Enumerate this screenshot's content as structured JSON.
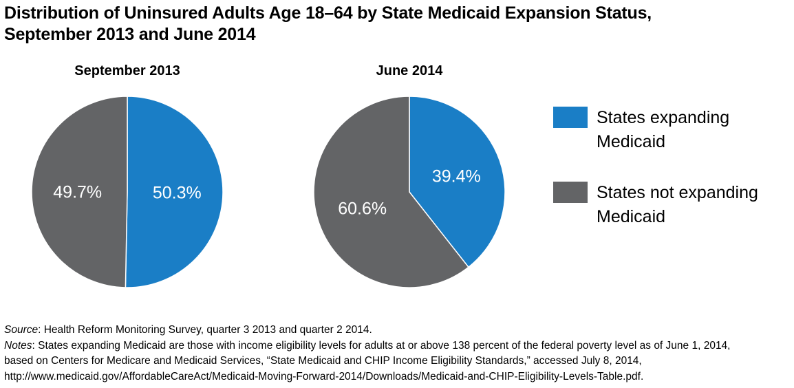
{
  "title": {
    "line1": "Distribution of Uninsured Adults Age 18–64 by State Medicaid Expansion Status,",
    "line2": "September 2013 and June 2014"
  },
  "chart_data": [
    {
      "type": "pie",
      "title": "September 2013",
      "categories": [
        "States expanding Medicaid",
        "States not expanding Medicaid"
      ],
      "values": [
        50.3,
        49.7
      ],
      "labels": [
        "50.3%",
        "49.7%"
      ],
      "colors": [
        "#1a7ec6",
        "#636466"
      ]
    },
    {
      "type": "pie",
      "title": "June 2014",
      "categories": [
        "States expanding Medicaid",
        "States not expanding Medicaid"
      ],
      "values": [
        39.4,
        60.6
      ],
      "labels": [
        "39.4%",
        "60.6%"
      ],
      "colors": [
        "#1a7ec6",
        "#636466"
      ]
    }
  ],
  "legend": {
    "placement": "right",
    "items": [
      {
        "line1": "States expanding",
        "line2": "Medicaid",
        "color": "#1a7ec6"
      },
      {
        "line1": "States not expanding",
        "line2": "Medicaid",
        "color": "#636466"
      }
    ]
  },
  "notes": {
    "source_label": "Source",
    "source_text": ": Health Reform Monitoring Survey, quarter 3 2013 and quarter 2 2014.",
    "notes_label": "Notes",
    "notes_line1": ": States expanding Medicaid are those with income eligibility levels for adults at or above 138 percent of the federal poverty level as of June 1, 2014,",
    "notes_line2": "based on Centers for Medicare and Medicaid Services, “State Medicaid and CHIP Income Eligibility Standards,” accessed July 8, 2014,",
    "notes_line3": "http://www.medicaid.gov/AffordableCareAct/Medicaid-Moving-Forward-2014/Downloads/Medicaid-and-CHIP-Eligibility-Levels-Table.pdf."
  }
}
